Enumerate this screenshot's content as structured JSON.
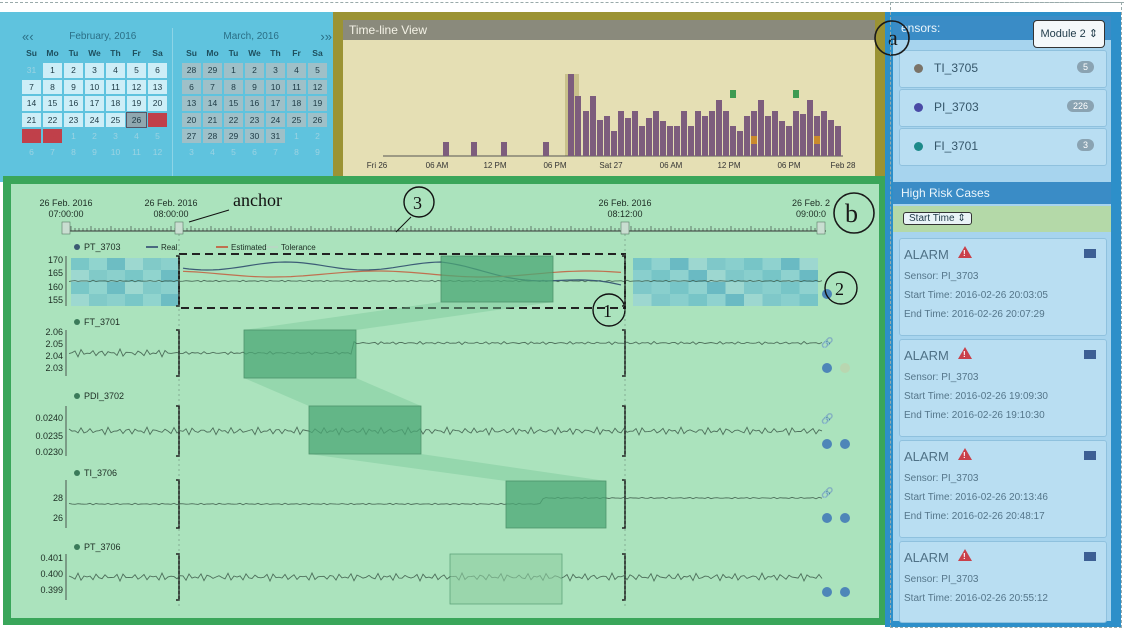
{
  "calendar": {
    "left": {
      "month": "February, 2016",
      "nav": [
        "«",
        "‹"
      ],
      "weekdays": [
        "Su",
        "Mo",
        "Tu",
        "We",
        "Th",
        "Fr",
        "Sa"
      ],
      "days": [
        "31",
        "1",
        "2",
        "3",
        "4",
        "5",
        "6",
        "7",
        "8",
        "9",
        "10",
        "11",
        "12",
        "13",
        "14",
        "15",
        "16",
        "17",
        "18",
        "19",
        "20",
        "21",
        "22",
        "23",
        "24",
        "25",
        "26",
        "27",
        "28",
        "29",
        "1",
        "2",
        "3",
        "4",
        "5",
        "6",
        "7",
        "8",
        "9",
        "10",
        "11",
        "12"
      ],
      "selected": "26"
    },
    "right": {
      "month": "March, 2016",
      "nav": [
        "›",
        "»"
      ],
      "weekdays": [
        "Su",
        "Mo",
        "Tu",
        "We",
        "Th",
        "Fr",
        "Sa"
      ],
      "days": [
        "28",
        "29",
        "1",
        "2",
        "3",
        "4",
        "5",
        "6",
        "7",
        "8",
        "9",
        "10",
        "11",
        "12",
        "13",
        "14",
        "15",
        "16",
        "17",
        "18",
        "19",
        "20",
        "21",
        "22",
        "23",
        "24",
        "25",
        "26",
        "27",
        "28",
        "29",
        "30",
        "31",
        "1",
        "2",
        "3",
        "4",
        "5",
        "6",
        "7",
        "8",
        "9"
      ]
    }
  },
  "timeline": {
    "title": "Time-line View",
    "x_labels": [
      "Fri 26",
      "06 AM",
      "12 PM",
      "06 PM",
      "Sat 27",
      "06 AM",
      "12 PM",
      "06 PM",
      "Feb 28"
    ]
  },
  "sensors": {
    "header": "ensors:",
    "module": "Module 2",
    "items": [
      {
        "name": "TI_3705",
        "count": "5",
        "color": "#7a7368"
      },
      {
        "name": "PI_3703",
        "count": "226",
        "color": "#4a4aa6"
      },
      {
        "name": "FI_3701",
        "count": "3",
        "color": "#1d8a8a"
      }
    ]
  },
  "high_risk": {
    "title": "High Risk Cases",
    "sort": "Start Time",
    "alarms": [
      {
        "title": "ALARM",
        "sensor": "Sensor: PI_3703",
        "start": "Start Time: 2016-02-26 20:03:05",
        "end": "End Time: 2016-02-26 20:07:29"
      },
      {
        "title": "ALARM",
        "sensor": "Sensor: PI_3703",
        "start": "Start Time: 2016-02-26 19:09:30",
        "end": "End Time: 2016-02-26 19:10:30"
      },
      {
        "title": "ALARM",
        "sensor": "Sensor: PI_3703",
        "start": "Start Time: 2016-02-26 20:13:46",
        "end": "End Time: 2016-02-26 20:48:17"
      },
      {
        "title": "ALARM",
        "sensor": "Sensor: PI_3703",
        "start": "Start Time: 2016-02-26 20:55:12",
        "end": ""
      }
    ]
  },
  "main": {
    "annotation_a": "a",
    "annotation_b": "b",
    "anchor_label": "anchor",
    "circle_labels": [
      "1",
      "2",
      "3"
    ],
    "time_headers": [
      {
        "date": "26 Feb. 2016",
        "time": "07:00:00"
      },
      {
        "date": "26 Feb. 2016",
        "time": "08:00:00"
      },
      {
        "date": "26 Feb. 2016",
        "time": "08:12:00"
      },
      {
        "date": "26 Feb. 2",
        "time": "09:00:0"
      }
    ],
    "legend": [
      "Real",
      "Estimated",
      "Tolerance"
    ],
    "rows": [
      {
        "name": "PT_3703",
        "ticks": [
          "170",
          "165",
          "160",
          "155"
        ]
      },
      {
        "name": "FT_3701",
        "ticks": [
          "2.06",
          "2.05",
          "2.04",
          "2.03"
        ]
      },
      {
        "name": "PDI_3702",
        "ticks": [
          "0.0240",
          "0.0235",
          "0.0230"
        ]
      },
      {
        "name": "TI_3706",
        "ticks": [
          "28",
          "26"
        ]
      },
      {
        "name": "PT_3706",
        "ticks": [
          "0.401",
          "0.400",
          "0.399"
        ]
      }
    ]
  }
}
